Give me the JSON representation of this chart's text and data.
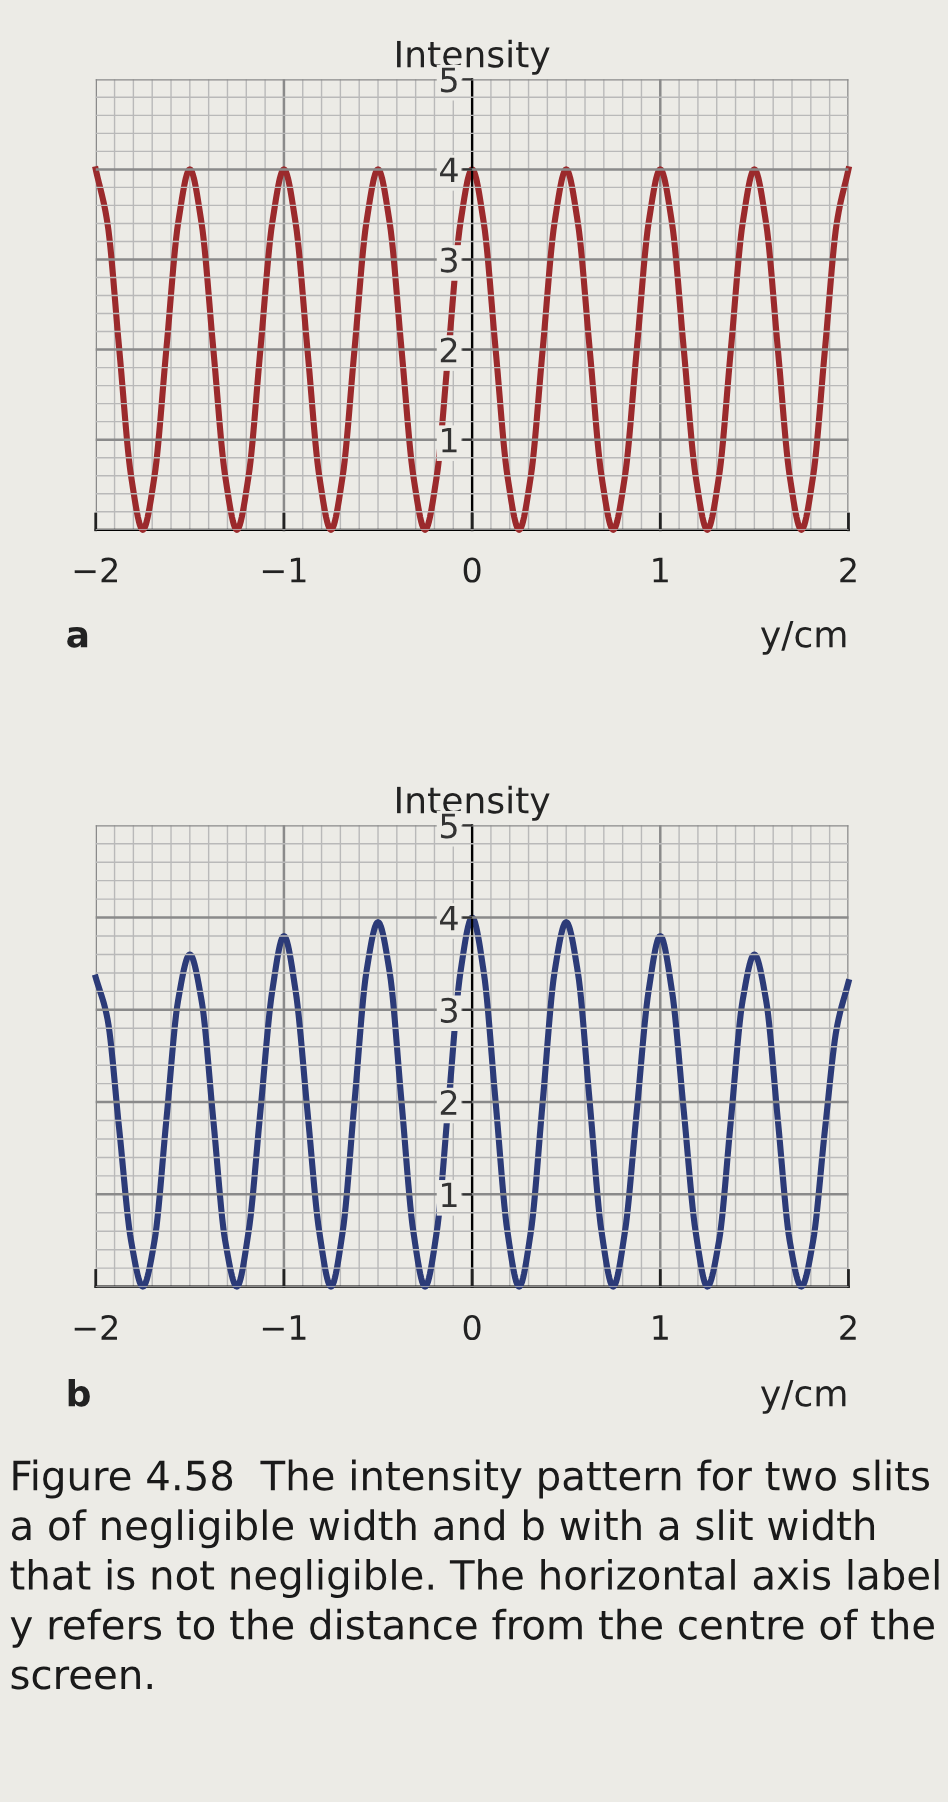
{
  "chart_data": [
    {
      "type": "line",
      "ylabel": "Intensity",
      "xlabel": "y/cm",
      "xlim": [
        -2,
        2
      ],
      "ylim": [
        0,
        5
      ],
      "xticks": [
        -2,
        -1,
        0,
        1,
        2
      ],
      "yticks": [
        1,
        2,
        3,
        4,
        5
      ],
      "grid": true,
      "x": [
        -2,
        -1.9375,
        -1.875,
        -1.8125,
        -1.75,
        -1.6875,
        -1.625,
        -1.5625,
        -1.5,
        -1.4375,
        -1.375,
        -1.3125,
        -1.25,
        -1.1875,
        -1.125,
        -1.0625,
        -1,
        -0.9375,
        -0.875,
        -0.8125,
        -0.75,
        -0.6875,
        -0.625,
        -0.5625,
        -0.5,
        -0.4375,
        -0.375,
        -0.3125,
        -0.25,
        -0.1875,
        -0.125,
        -0.0625,
        0,
        0.0625,
        0.125,
        0.1875,
        0.25,
        0.3125,
        0.375,
        0.4375,
        0.5,
        0.5625,
        0.625,
        0.6875,
        0.75,
        0.8125,
        0.875,
        0.9375,
        1,
        1.0625,
        1.125,
        1.1875,
        1.25,
        1.3125,
        1.375,
        1.4375,
        1.5,
        1.5625,
        1.625,
        1.6875,
        1.75,
        1.8125,
        1.875,
        1.9375,
        2
      ],
      "series": [
        {
          "color": "#9b2a2c",
          "values": [
            4,
            3.4,
            2,
            0.6,
            0,
            0.6,
            2,
            3.4,
            4,
            3.4,
            2,
            0.6,
            0,
            0.6,
            2,
            3.4,
            4,
            3.4,
            2,
            0.6,
            0,
            0.6,
            2,
            3.4,
            4,
            3.4,
            2,
            0.6,
            0,
            0.6,
            2,
            3.4,
            4,
            3.4,
            2,
            0.6,
            0,
            0.6,
            2,
            3.4,
            4,
            3.4,
            2,
            0.6,
            0,
            0.6,
            2,
            3.4,
            4,
            3.4,
            2,
            0.6,
            0,
            0.6,
            2,
            3.4,
            4,
            3.4,
            2,
            0.6,
            0,
            0.6,
            2,
            3.4,
            4
          ]
        }
      ],
      "annotations": [
        "a"
      ]
    },
    {
      "type": "line",
      "ylabel": "Intensity",
      "xlabel": "y/cm",
      "xlim": [
        -2,
        2
      ],
      "ylim": [
        0,
        5
      ],
      "xticks": [
        -2,
        -1,
        0,
        1,
        2
      ],
      "yticks": [
        1,
        2,
        3,
        4,
        5
      ],
      "grid": true,
      "x": [
        -2,
        -1.9375,
        -1.875,
        -1.8125,
        -1.75,
        -1.6875,
        -1.625,
        -1.5625,
        -1.5,
        -1.4375,
        -1.375,
        -1.3125,
        -1.25,
        -1.1875,
        -1.125,
        -1.0625,
        -1,
        -0.9375,
        -0.875,
        -0.8125,
        -0.75,
        -0.6875,
        -0.625,
        -0.5625,
        -0.5,
        -0.4375,
        -0.375,
        -0.3125,
        -0.25,
        -0.1875,
        -0.125,
        -0.0625,
        0,
        0.0625,
        0.125,
        0.1875,
        0.25,
        0.3125,
        0.375,
        0.4375,
        0.5,
        0.5625,
        0.625,
        0.6875,
        0.75,
        0.8125,
        0.875,
        0.9375,
        1,
        1.0625,
        1.125,
        1.1875,
        1.25,
        1.3125,
        1.375,
        1.4375,
        1.5,
        1.5625,
        1.625,
        1.6875,
        1.75,
        1.8125,
        1.875,
        1.9375,
        2
      ],
      "series": [
        {
          "color": "#2c3b78",
          "values": [
            3.35,
            2.9,
            1.7,
            0.5,
            0,
            0.5,
            1.8,
            3.1,
            3.6,
            3.1,
            1.8,
            0.5,
            0,
            0.6,
            1.9,
            3.2,
            3.8,
            3.2,
            1.9,
            0.6,
            0,
            0.6,
            2.0,
            3.4,
            3.95,
            3.4,
            2.0,
            0.6,
            0,
            0.6,
            2,
            3.4,
            4,
            3.4,
            2,
            0.6,
            0,
            0.6,
            2.0,
            3.4,
            3.95,
            3.4,
            2.0,
            0.6,
            0,
            0.6,
            1.9,
            3.2,
            3.8,
            3.2,
            1.9,
            0.6,
            0,
            0.5,
            1.8,
            3.1,
            3.6,
            3.1,
            1.8,
            0.5,
            0,
            0.5,
            1.7,
            2.8,
            3.3
          ]
        }
      ],
      "annotations": [
        "b",
        "Figure 4.58  The intensity pattern for two slits a of negligible width and b with a slit width that is not negligible. The horizontal axis label y refers to the distance from the centre of the screen."
      ]
    }
  ]
}
